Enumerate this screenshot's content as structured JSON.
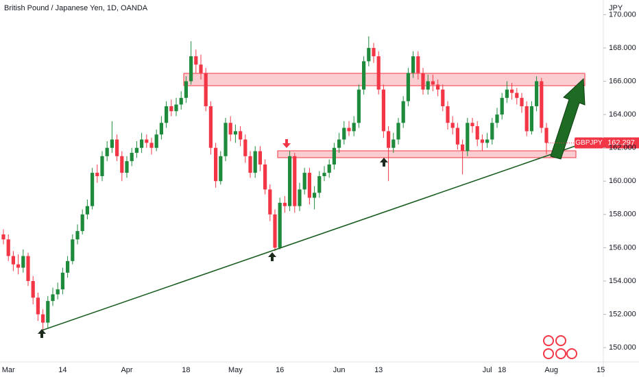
{
  "chart_data": {
    "type": "candlestick",
    "title": "British Pound / Japanese Yen, 1D, OANDA",
    "currency": "JPY",
    "symbol": "GBPJPY",
    "up_color": "#1e8a3c",
    "down_color": "#f23645",
    "categories": [
      null,
      "Mar",
      null,
      null,
      null,
      null,
      null,
      null,
      null,
      null,
      null,
      null,
      "14",
      null,
      null,
      null,
      null,
      null,
      null,
      null,
      null,
      null,
      null,
      null,
      null,
      "Apr",
      null,
      null,
      null,
      null,
      null,
      null,
      null,
      null,
      null,
      null,
      null,
      "18",
      null,
      null,
      null,
      null,
      null,
      null,
      null,
      null,
      null,
      "May",
      null,
      null,
      null,
      null,
      null,
      null,
      null,
      null,
      "16",
      null,
      null,
      null,
      null,
      null,
      null,
      null,
      null,
      null,
      null,
      null,
      "Jun",
      null,
      null,
      null,
      null,
      null,
      null,
      null,
      "13",
      null,
      null,
      null,
      null,
      null,
      null,
      null,
      null,
      null,
      null,
      null,
      null,
      null,
      null,
      null,
      null,
      null,
      null,
      null,
      null,
      null,
      "Jul",
      null,
      null,
      "18",
      null,
      null,
      null,
      null,
      null,
      null,
      null,
      null,
      null,
      "Aug",
      null,
      null,
      null,
      null,
      null,
      null,
      null,
      null,
      null,
      "15"
    ],
    "open": [
      156.8,
      156.5,
      155.5,
      155.0,
      154.8,
      155.5,
      154.0,
      153.0,
      152.0,
      151.5,
      152.8,
      153.2,
      153.5,
      154.5,
      155.2,
      156.5,
      157.0,
      158.0,
      158.5,
      160.5,
      160.3,
      161.5,
      162.0,
      162.5,
      161.5,
      160.5,
      161.2,
      161.7,
      162.0,
      162.5,
      162.3,
      162.0,
      162.8,
      163.5,
      164.5,
      164.2,
      164.6,
      165.0,
      166.0,
      167.5,
      167.0,
      166.5,
      164.5,
      162.0,
      160.0,
      161.5,
      163.5,
      162.8,
      163.0,
      162.5,
      161.5,
      160.5,
      161.8,
      161.0,
      159.5,
      158.0,
      156.0,
      158.7,
      158.5,
      161.5,
      158.5,
      159.5,
      160.5,
      159.0,
      159.3,
      160.3,
      160.5,
      161.0,
      162.0,
      162.5,
      163.2,
      163.0,
      163.5,
      165.5,
      167.2,
      168.0,
      167.5,
      165.5,
      163.0,
      162.0,
      162.5,
      163.5,
      164.8,
      166.5,
      167.5,
      166.5,
      165.5,
      166.0,
      165.8,
      165.5,
      164.5,
      163.5,
      163.2,
      162.2,
      161.8,
      163.5,
      163.3,
      162.5,
      162.3,
      162.5,
      163.5,
      164.0,
      165.0,
      165.5,
      165.3,
      165.0,
      164.5,
      163.0,
      164.5,
      166.0,
      163.2,
      null,
      null,
      null,
      null,
      null,
      null,
      null,
      null,
      null,
      null,
      null
    ],
    "high": [
      157.1,
      156.8,
      155.8,
      155.6,
      155.9,
      155.7,
      154.3,
      153.3,
      152.3,
      153.1,
      153.6,
      153.9,
      154.8,
      155.5,
      156.8,
      157.4,
      158.3,
      158.9,
      160.8,
      161.0,
      161.8,
      162.4,
      163.6,
      162.8,
      161.8,
      161.5,
      162.0,
      162.4,
      162.9,
      162.8,
      162.6,
      163.1,
      163.9,
      164.8,
      164.9,
      165.0,
      165.4,
      166.3,
      168.4,
      167.9,
      167.6,
      166.8,
      164.8,
      162.3,
      161.8,
      163.8,
      163.9,
      163.4,
      163.3,
      162.8,
      161.8,
      162.1,
      162.1,
      161.3,
      159.8,
      158.3,
      159.0,
      159.1,
      161.8,
      161.7,
      159.9,
      160.8,
      160.8,
      159.7,
      160.6,
      160.9,
      161.3,
      162.3,
      162.9,
      163.6,
      163.6,
      163.9,
      165.8,
      167.5,
      168.7,
      168.3,
      167.8,
      165.8,
      163.3,
      162.9,
      163.8,
      165.1,
      166.8,
      167.8,
      167.8,
      166.8,
      166.4,
      166.4,
      166.1,
      165.8,
      164.8,
      163.9,
      163.5,
      162.5,
      163.8,
      163.8,
      163.6,
      162.8,
      162.9,
      163.8,
      164.4,
      165.3,
      166.0,
      165.9,
      165.6,
      165.3,
      164.8,
      164.8,
      166.3,
      166.2,
      163.5,
      null,
      null,
      null,
      null,
      null,
      null,
      null,
      null,
      null,
      null,
      null
    ],
    "low": [
      156.2,
      155.2,
      154.6,
      154.4,
      154.5,
      153.7,
      152.6,
      151.6,
      151.0,
      151.2,
      152.5,
      152.9,
      153.2,
      154.2,
      155.0,
      156.2,
      156.8,
      157.7,
      158.3,
      159.9,
      160.0,
      161.2,
      161.7,
      161.2,
      160.0,
      160.2,
      160.9,
      161.4,
      161.7,
      162.0,
      161.6,
      161.8,
      162.5,
      163.2,
      163.9,
      163.9,
      164.3,
      164.7,
      165.8,
      166.5,
      166.1,
      164.2,
      161.6,
      159.6,
      159.8,
      161.2,
      162.4,
      162.3,
      162.1,
      161.1,
      160.2,
      160.2,
      160.6,
      159.2,
      157.6,
      155.8,
      155.9,
      158.1,
      158.2,
      158.1,
      158.2,
      159.2,
      158.6,
      158.3,
      159.0,
      160.0,
      160.2,
      160.7,
      161.7,
      162.2,
      162.7,
      162.7,
      163.2,
      165.2,
      166.9,
      167.1,
      165.2,
      162.6,
      160.0,
      161.7,
      162.2,
      163.2,
      164.5,
      166.2,
      166.1,
      165.2,
      165.2,
      165.4,
      165.1,
      164.2,
      163.1,
      162.8,
      161.9,
      160.4,
      161.5,
      162.9,
      162.1,
      161.8,
      162.0,
      162.2,
      163.2,
      163.7,
      164.7,
      164.9,
      164.6,
      164.1,
      162.7,
      162.8,
      164.2,
      162.9,
      161.6,
      null,
      null,
      null,
      null,
      null,
      null,
      null,
      null,
      null,
      null,
      null
    ],
    "close": [
      156.5,
      155.5,
      155.0,
      154.8,
      155.5,
      154.0,
      153.0,
      152.0,
      151.5,
      152.8,
      153.2,
      153.5,
      154.5,
      155.2,
      156.5,
      157.0,
      158.0,
      158.5,
      160.5,
      160.3,
      161.5,
      162.0,
      162.5,
      161.5,
      160.5,
      161.2,
      161.7,
      162.0,
      162.5,
      162.3,
      162.0,
      162.8,
      163.5,
      164.5,
      164.2,
      164.6,
      165.0,
      166.0,
      167.5,
      167.0,
      166.5,
      164.5,
      162.0,
      160.0,
      161.5,
      163.5,
      162.8,
      163.0,
      162.5,
      161.5,
      160.5,
      161.8,
      161.0,
      159.5,
      158.0,
      156.0,
      158.7,
      158.5,
      161.5,
      158.5,
      159.5,
      160.5,
      159.0,
      159.3,
      160.3,
      160.5,
      161.0,
      162.0,
      162.5,
      163.2,
      163.0,
      163.5,
      165.5,
      167.2,
      168.0,
      167.5,
      165.5,
      163.0,
      162.0,
      162.5,
      163.5,
      164.8,
      166.5,
      167.5,
      166.5,
      165.5,
      166.0,
      165.8,
      165.5,
      164.5,
      163.5,
      163.2,
      162.2,
      161.8,
      163.5,
      163.3,
      162.5,
      162.3,
      162.5,
      163.5,
      164.0,
      165.0,
      165.5,
      165.3,
      165.0,
      164.5,
      163.0,
      164.5,
      166.0,
      163.2,
      162.297,
      null,
      null,
      null,
      null,
      null,
      null,
      null,
      null,
      null,
      null,
      null
    ],
    "ylim": [
      149.14,
      170.88
    ],
    "yticks": [
      {
        "value": 150,
        "label": "150.000"
      },
      {
        "value": 152,
        "label": "152.000"
      },
      {
        "value": 154,
        "label": "154.000"
      },
      {
        "value": 156,
        "label": "156.000"
      },
      {
        "value": 158,
        "label": "158.000"
      },
      {
        "value": 160,
        "label": "160.000"
      },
      {
        "value": 162,
        "label": "162.000"
      },
      {
        "value": 164,
        "label": "164.000"
      },
      {
        "value": 166,
        "label": "166.000"
      },
      {
        "value": 168,
        "label": "168.000"
      },
      {
        "value": 170,
        "label": "170.000"
      }
    ]
  }
}
